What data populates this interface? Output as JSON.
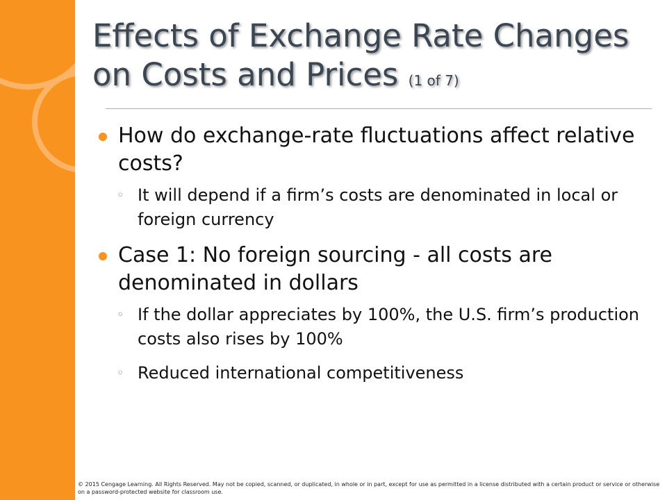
{
  "title": {
    "main": "Effects of Exchange Rate Changes on Costs and Prices",
    "part": "(1 of 7)"
  },
  "bullets": [
    {
      "text": "How do exchange-rate fluctuations affect relative costs?",
      "subs": [
        "It will depend if a firm’s costs are denominated in local or foreign currency"
      ]
    },
    {
      "text": "Case 1: No foreign sourcing - all costs are denominated in dollars",
      "subs": [
        "If the dollar appreciates by 100%, the U.S. firm’s production costs also rises by 100%",
        "Reduced international competitiveness"
      ]
    }
  ],
  "footer": "© 2015 Cengage Learning. All Rights Reserved. May not be copied, scanned, or duplicated, in whole or in part, except for use as permitted in a license distributed with a certain product or service or otherwise on a password-protected website for classroom use."
}
